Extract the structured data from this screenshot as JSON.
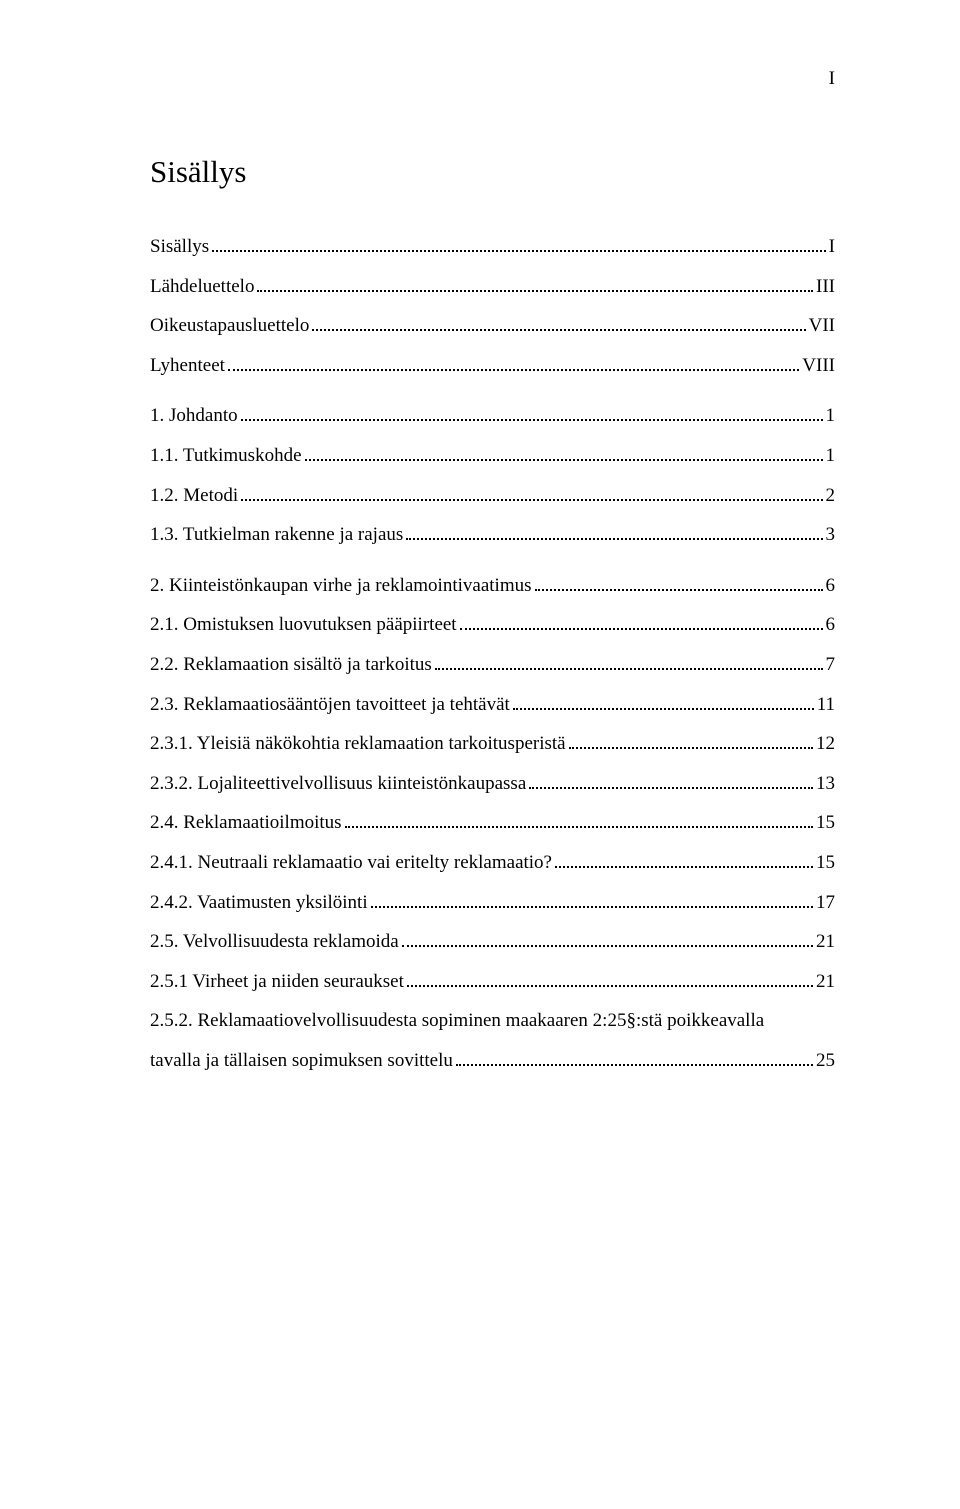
{
  "page_marker": "I",
  "heading": "Sisällys",
  "colors": {
    "text": "#000000",
    "background": "#ffffff"
  },
  "typography": {
    "font_family": "Times New Roman",
    "heading_fontsize_pt": 24,
    "body_fontsize_pt": 14
  },
  "toc": [
    {
      "label": "Sisällys",
      "page": "I",
      "level": 1,
      "break": false
    },
    {
      "label": "Lähdeluettelo",
      "page": "III",
      "level": 1,
      "break": false
    },
    {
      "label": "Oikeustapausluettelo",
      "page": "VII",
      "level": 1,
      "break": false
    },
    {
      "label": "Lyhenteet",
      "page": "VIII",
      "level": 1,
      "break": false
    },
    {
      "label": "1. Johdanto",
      "page": "1",
      "level": 1,
      "break": true
    },
    {
      "label": "1.1. Tutkimuskohde",
      "page": "1",
      "level": 2,
      "break": false
    },
    {
      "label": "1.2. Metodi",
      "page": "2",
      "level": 2,
      "break": false
    },
    {
      "label": "1.3. Tutkielman rakenne ja rajaus",
      "page": "3",
      "level": 2,
      "break": false
    },
    {
      "label": "2. Kiinteistönkaupan virhe ja reklamointivaatimus",
      "page": "6",
      "level": 1,
      "break": true
    },
    {
      "label": "2.1. Omistuksen luovutuksen pääpiirteet",
      "page": "6",
      "level": 2,
      "break": false
    },
    {
      "label": "2.2. Reklamaation sisältö ja tarkoitus",
      "page": "7",
      "level": 2,
      "break": false
    },
    {
      "label": "2.3. Reklamaatiosääntöjen tavoitteet ja tehtävät",
      "page": "11",
      "level": 2,
      "break": false
    },
    {
      "label": "2.3.1. Yleisiä näkökohtia reklamaation tarkoitusperistä",
      "page": "12",
      "level": 3,
      "break": false
    },
    {
      "label": "2.3.2. Lojaliteettivelvollisuus kiinteistönkaupassa",
      "page": "13",
      "level": 3,
      "break": false
    },
    {
      "label": "2.4. Reklamaatioilmoitus",
      "page": "15",
      "level": 2,
      "break": false
    },
    {
      "label": "2.4.1. Neutraali reklamaatio vai eritelty reklamaatio?",
      "page": "15",
      "level": 3,
      "break": false
    },
    {
      "label": "2.4.2. Vaatimusten yksilöinti",
      "page": "17",
      "level": 3,
      "break": false
    },
    {
      "label": "2.5. Velvollisuudesta reklamoida",
      "page": "21",
      "level": 2,
      "break": false
    },
    {
      "label": "2.5.1 Virheet ja niiden seuraukset",
      "page": "21",
      "level": 3,
      "break": false
    },
    {
      "label_line1": "2.5.2. Reklamaatiovelvollisuudesta sopiminen maakaaren 2:25§:stä poikkeavalla",
      "label_line2": "tavalla ja tällaisen sopimuksen sovittelu",
      "page": "25",
      "level": 3,
      "break": false,
      "multiline": true
    }
  ]
}
